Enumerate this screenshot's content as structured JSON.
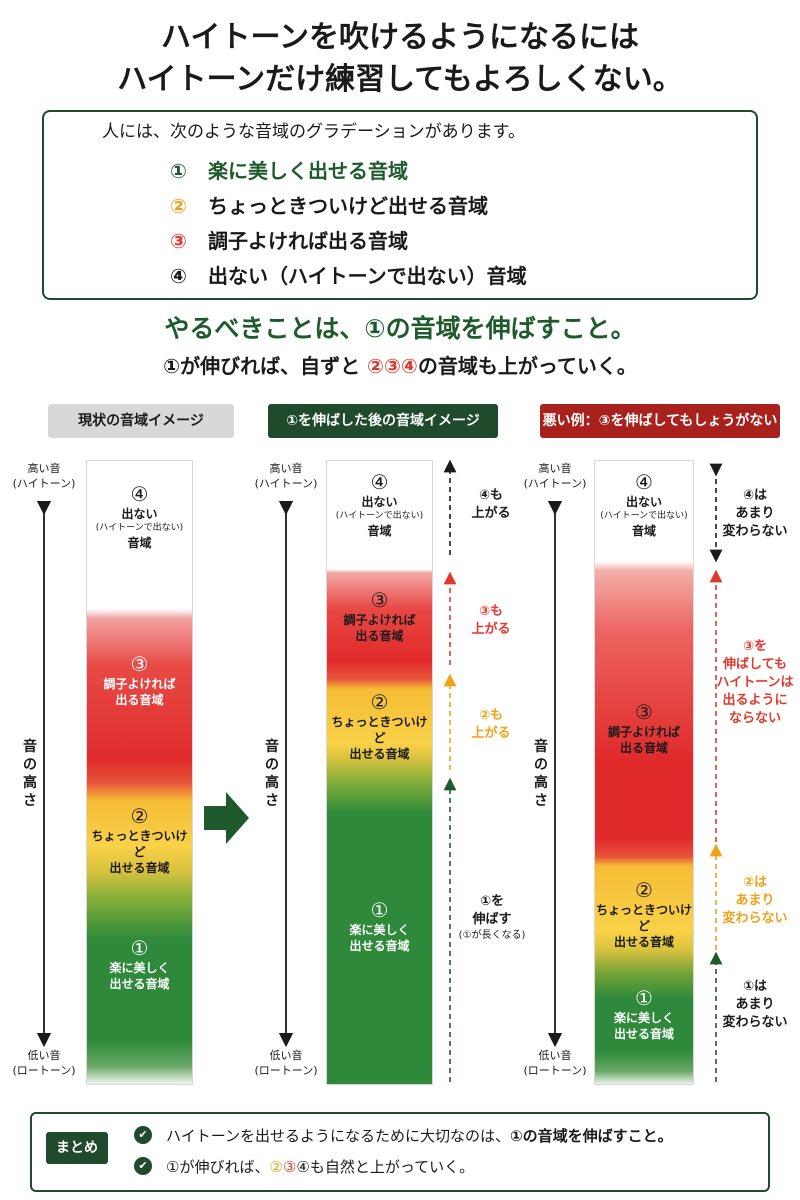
{
  "title": {
    "line1": "ハイトーンを吹けるようになるには",
    "line2": "ハイトーンだけ練習してもよろしくない。"
  },
  "intro": {
    "lead": "人には、次のような音域のグラデーションがあります。",
    "categories": [
      {
        "num": "①",
        "text": "楽に美しく出せる音域",
        "color": "#1f5a2c"
      },
      {
        "num": "②",
        "text": "ちょっときついけど出せる音域",
        "color": "#f0a21a"
      },
      {
        "num": "③",
        "text": "調子よければ出る音域",
        "color": "#e03a2e"
      },
      {
        "num": "④",
        "text": "出ない（ハイトーンで出ない）音域",
        "color": "#1a1a1a"
      }
    ]
  },
  "lead": {
    "main": "やるべきことは、①の音域を伸ばすこと。",
    "sub_a": "①が伸びれば、自ずと",
    "sub_n2": "②",
    "sub_n3": "③",
    "sub_n4": "④",
    "sub_b": "の音域も上がっていく。"
  },
  "panels": [
    {
      "label": "現状の音域イメージ",
      "color": "#d8d8d8"
    },
    {
      "label": "①を伸ばした後の音域イメージ",
      "color": "#1f4a2c"
    },
    {
      "label": "悪い例：③を伸ばしてもしょうがない",
      "color": "#a8211c"
    }
  ],
  "axis": {
    "high1": "高い音",
    "high2": "(ハイトーン)",
    "low1": "低い音",
    "low2": "(ロートーン)",
    "mid1": "音",
    "mid2": "の",
    "mid3": "高",
    "mid4": "さ"
  },
  "zones": {
    "z4": {
      "num": "④",
      "l1": "出ない",
      "sm": "(ハイトーンで出ない)",
      "l2": "音域"
    },
    "z3": {
      "num": "③",
      "l1": "調子よければ",
      "l2": "出る音域"
    },
    "z2": {
      "num": "②",
      "l1": "ちょっときついけど",
      "l2": "出せる音域"
    },
    "z1": {
      "num": "①",
      "l1": "楽に美しく",
      "l2": "出せる音域"
    }
  },
  "annotations_after": {
    "a4": {
      "l1": "④も",
      "l2": "上がる"
    },
    "a3": {
      "l1": "③も",
      "l2": "上がる"
    },
    "a2": {
      "l1": "②も",
      "l2": "上がる"
    },
    "a1": {
      "l1": "①を",
      "l2": "伸ばす",
      "sm": "(①が長くなる)"
    }
  },
  "annotations_bad": {
    "a4": {
      "l1": "④は",
      "l2": "あまり",
      "l3": "変わらない"
    },
    "a3": {
      "l1": "③を",
      "l2": "伸ばしても",
      "l3": "ハイトーンは",
      "l4": "出るように",
      "l5": "ならない"
    },
    "a2": {
      "l1": "②は",
      "l2": "あまり",
      "l3": "変わらない"
    },
    "a1": {
      "l1": "①は",
      "l2": "あまり",
      "l3": "変わらない"
    }
  },
  "summary": {
    "tag": "まとめ",
    "line1_a": "ハイトーンを出せるようになるために大切なのは、",
    "line1_b": "①の音域を伸ばすこと。",
    "line2_a": "①が伸びれば、",
    "line2_n2": "②",
    "line2_n3": "③",
    "line2_n4": "④",
    "line2_b": "も自然と上がっていく。"
  },
  "icons": {
    "check": "check-circle-icon",
    "next_arrow": "arrow-right-icon"
  }
}
